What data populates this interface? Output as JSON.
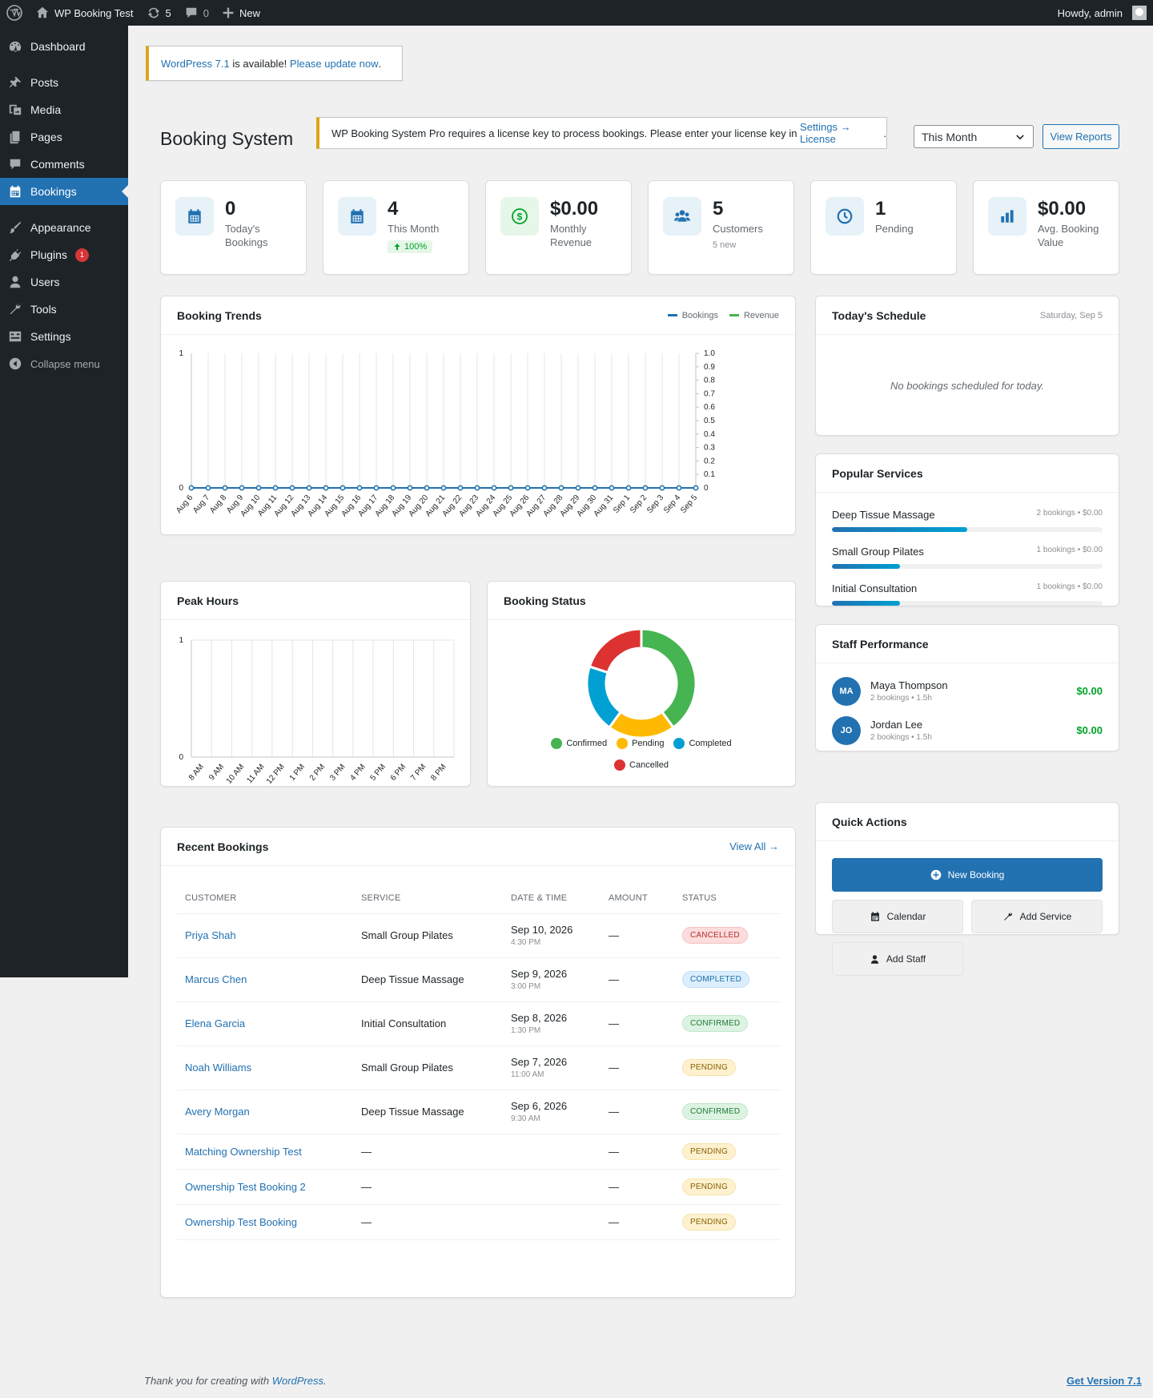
{
  "adminbar": {
    "site_name": "WP Booking Test",
    "updates_count": "5",
    "comments_count": "0",
    "new_label": "New",
    "howdy": "Howdy, admin"
  },
  "sidebar": {
    "items": [
      {
        "label": "Dashboard",
        "icon": "dashboard-icon"
      },
      {
        "label": "Posts",
        "icon": "pin-icon"
      },
      {
        "label": "Media",
        "icon": "media-icon"
      },
      {
        "label": "Pages",
        "icon": "pages-icon"
      },
      {
        "label": "Comments",
        "icon": "comment-icon"
      },
      {
        "label": "Bookings",
        "icon": "calendar-icon",
        "active": true
      },
      {
        "label": "Appearance",
        "icon": "brush-icon"
      },
      {
        "label": "Plugins",
        "icon": "plugin-icon",
        "badge": "1"
      },
      {
        "label": "Users",
        "icon": "user-icon"
      },
      {
        "label": "Tools",
        "icon": "wrench-icon"
      },
      {
        "label": "Settings",
        "icon": "settings-icon"
      }
    ],
    "collapse_label": "Collapse menu"
  },
  "notices": {
    "update_link": "WordPress 7.1",
    "update_text": " is available! ",
    "update_now": "Please update now",
    "update_end": ".",
    "license_text": "WP Booking System Pro requires a license key to process bookings. Please enter your license key in ",
    "license_link": "Settings → License",
    "license_end": "."
  },
  "header": {
    "title": "Booking System",
    "period_value": "This Month",
    "view_reports": "View Reports"
  },
  "stats": [
    {
      "value": "0",
      "label": "Today's Bookings",
      "icon": "calendar-icon"
    },
    {
      "value": "4",
      "label": "This Month",
      "trend": "100%",
      "icon": "calendar-icon"
    },
    {
      "value": "$0.00",
      "label": "Monthly Revenue",
      "icon": "dollar-icon"
    },
    {
      "value": "5",
      "label": "Customers",
      "sub": "5 new",
      "icon": "group-icon"
    },
    {
      "value": "1",
      "label": "Pending",
      "icon": "clock-icon"
    },
    {
      "value": "$0.00",
      "label": "Avg. Booking Value",
      "icon": "bar-chart-icon"
    }
  ],
  "trends": {
    "title": "Booking Trends",
    "legend_bookings": "Bookings",
    "legend_revenue": "Revenue"
  },
  "schedule": {
    "title": "Today's Schedule",
    "date": "Saturday, Sep 5",
    "empty": "No bookings scheduled for today."
  },
  "services": {
    "title": "Popular Services",
    "items": [
      {
        "name": "Deep Tissue Massage",
        "meta": "2 bookings • $0.00",
        "share": 0.5
      },
      {
        "name": "Small Group Pilates",
        "meta": "1 bookings • $0.00",
        "share": 0.25
      },
      {
        "name": "Initial Consultation",
        "meta": "1 bookings • $0.00",
        "share": 0.25
      }
    ]
  },
  "staff": {
    "title": "Staff Performance",
    "items": [
      {
        "initials": "MA",
        "name": "Maya Thompson",
        "meta": "2 bookings • 1.5h",
        "amount": "$0.00"
      },
      {
        "initials": "JO",
        "name": "Jordan Lee",
        "meta": "2 bookings • 1.5h",
        "amount": "$0.00"
      }
    ]
  },
  "peak": {
    "title": "Peak Hours"
  },
  "status_chart": {
    "title": "Booking Status"
  },
  "quick": {
    "title": "Quick Actions",
    "new_booking": "New Booking",
    "calendar": "Calendar",
    "add_service": "Add Service",
    "add_staff": "Add Staff"
  },
  "recent": {
    "title": "Recent Bookings",
    "view_all": "View All →",
    "columns": [
      "CUSTOMER",
      "SERVICE",
      "DATE & TIME",
      "AMOUNT",
      "STATUS"
    ],
    "rows": [
      {
        "customer": "Priya Shah",
        "service": "Small Group Pilates",
        "date": "Sep 10, 2026",
        "time": "4:30 PM",
        "amount": "—",
        "status": "CANCELLED",
        "kind": "cancelled"
      },
      {
        "customer": "Marcus Chen",
        "service": "Deep Tissue Massage",
        "date": "Sep 9, 2026",
        "time": "3:00 PM",
        "amount": "—",
        "status": "COMPLETED",
        "kind": "completed"
      },
      {
        "customer": "Elena Garcia",
        "service": "Initial Consultation",
        "date": "Sep 8, 2026",
        "time": "1:30 PM",
        "amount": "—",
        "status": "CONFIRMED",
        "kind": "confirmed"
      },
      {
        "customer": "Noah Williams",
        "service": "Small Group Pilates",
        "date": "Sep 7, 2026",
        "time": "11:00 AM",
        "amount": "—",
        "status": "PENDING",
        "kind": "pending"
      },
      {
        "customer": "Avery Morgan",
        "service": "Deep Tissue Massage",
        "date": "Sep 6, 2026",
        "time": "9:30 AM",
        "amount": "—",
        "status": "CONFIRMED",
        "kind": "confirmed"
      },
      {
        "customer": "Matching Ownership Test",
        "service": "—",
        "date": "",
        "time": "",
        "amount": "—",
        "status": "PENDING",
        "kind": "pending"
      },
      {
        "customer": "Ownership Test Booking 2",
        "service": "—",
        "date": "",
        "time": "",
        "amount": "—",
        "status": "PENDING",
        "kind": "pending"
      },
      {
        "customer": "Ownership Test Booking",
        "service": "—",
        "date": "",
        "time": "",
        "amount": "—",
        "status": "PENDING",
        "kind": "pending"
      }
    ]
  },
  "footer": {
    "thanks": "Thank you for creating with ",
    "wp_link": "WordPress",
    "end": ".",
    "version": "Get Version 7.1"
  },
  "colors": {
    "accent": "#2271b1",
    "confirmed": "#46b450",
    "pending": "#ffb900",
    "completed": "#00a0d2",
    "cancelled": "#dc3232"
  },
  "chart_data": [
    {
      "type": "line",
      "title": "Booking Trends",
      "x": [
        "Aug 6",
        "Aug 7",
        "Aug 8",
        "Aug 9",
        "Aug 10",
        "Aug 11",
        "Aug 12",
        "Aug 13",
        "Aug 14",
        "Aug 15",
        "Aug 16",
        "Aug 17",
        "Aug 18",
        "Aug 19",
        "Aug 20",
        "Aug 21",
        "Aug 22",
        "Aug 23",
        "Aug 24",
        "Aug 25",
        "Aug 26",
        "Aug 27",
        "Aug 28",
        "Aug 29",
        "Aug 30",
        "Aug 31",
        "Sep 1",
        "Sep 2",
        "Sep 3",
        "Sep 4",
        "Sep 5"
      ],
      "series": [
        {
          "name": "Bookings",
          "values": [
            0,
            0,
            0,
            0,
            0,
            0,
            0,
            0,
            0,
            0,
            0,
            0,
            0,
            0,
            0,
            0,
            0,
            0,
            0,
            0,
            0,
            0,
            0,
            0,
            0,
            0,
            0,
            0,
            0,
            0,
            0
          ],
          "axis": "left",
          "color": "#2271b1"
        },
        {
          "name": "Revenue",
          "values": [
            0,
            0,
            0,
            0,
            0,
            0,
            0,
            0,
            0,
            0,
            0,
            0,
            0,
            0,
            0,
            0,
            0,
            0,
            0,
            0,
            0,
            0,
            0,
            0,
            0,
            0,
            0,
            0,
            0,
            0,
            0
          ],
          "axis": "right",
          "color": "#46b450"
        }
      ],
      "ylim_left": [
        0,
        1
      ],
      "yticks_left": [
        "0",
        "1"
      ],
      "ylim_right": [
        0,
        1
      ],
      "yticks_right": [
        "0",
        "0.1",
        "0.2",
        "0.3",
        "0.4",
        "0.5",
        "0.6",
        "0.7",
        "0.8",
        "0.9",
        "1.0"
      ],
      "grid": true,
      "legend": "top-right"
    },
    {
      "type": "bar",
      "title": "Peak Hours",
      "categories": [
        "8 AM",
        "9 AM",
        "10 AM",
        "11 AM",
        "12 PM",
        "1 PM",
        "2 PM",
        "3 PM",
        "4 PM",
        "5 PM",
        "6 PM",
        "7 PM",
        "8 PM"
      ],
      "values": [
        0,
        0,
        0,
        0,
        0,
        0,
        0,
        0,
        0,
        0,
        0,
        0,
        0
      ],
      "ylim": [
        0,
        1
      ],
      "yticks": [
        "0",
        "1"
      ],
      "grid": true
    },
    {
      "type": "pie",
      "title": "Booking Status",
      "labels": [
        "Confirmed",
        "Pending",
        "Completed",
        "Cancelled"
      ],
      "values": [
        2,
        1,
        1,
        1
      ],
      "colors": [
        "#46b450",
        "#ffb900",
        "#00a0d2",
        "#dc3232"
      ],
      "donut": true,
      "legend": "bottom"
    }
  ]
}
